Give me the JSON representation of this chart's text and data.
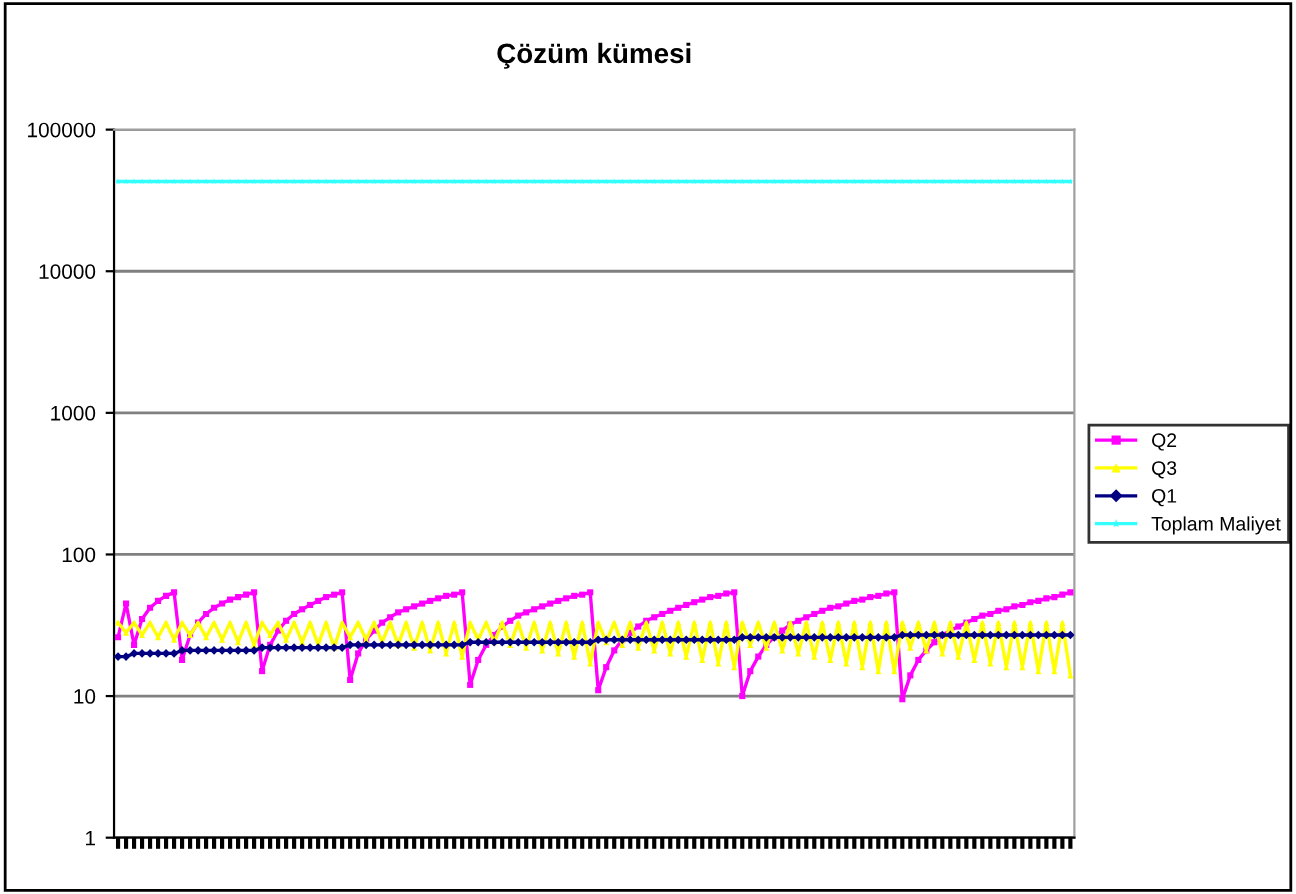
{
  "chart_data": {
    "type": "line",
    "title": "Çözüm kümesi",
    "categories": [
      null,
      null,
      null,
      null,
      null,
      null,
      null,
      null,
      null,
      null,
      null,
      null,
      null,
      null,
      null,
      null,
      null,
      null,
      null,
      null,
      null,
      null,
      null,
      null,
      null,
      null,
      null,
      null,
      null,
      null,
      null,
      null,
      null,
      null,
      null,
      null,
      null,
      null,
      null,
      null,
      null,
      null,
      null,
      null,
      null,
      null,
      null,
      null,
      null,
      null,
      null,
      null,
      null,
      null,
      null,
      null,
      null,
      null,
      null,
      null,
      null,
      null,
      null,
      null,
      null,
      null,
      null,
      null,
      null,
      null,
      null,
      null,
      null,
      null,
      null,
      null,
      null,
      null,
      null,
      null,
      null,
      null,
      null,
      null,
      null,
      null,
      null,
      null,
      null,
      null,
      null,
      null,
      null,
      null,
      null,
      null,
      null,
      null,
      null,
      null,
      null,
      null,
      null,
      null,
      null,
      null,
      null,
      null,
      null,
      null,
      null,
      null,
      null,
      null,
      null,
      null,
      null,
      null,
      null,
      null
    ],
    "log": "y",
    "ylim": [
      1,
      100000
    ],
    "yticks": [
      1,
      10,
      100,
      1000,
      10000,
      100000
    ],
    "grid": "y",
    "legend": "right",
    "series": [
      {
        "name": "Q2",
        "color": "#ff00ff",
        "marker": "square",
        "values": [
          26,
          45,
          23,
          35,
          42,
          47,
          51,
          54,
          18,
          27,
          33,
          38,
          42,
          45,
          48,
          50,
          52,
          54,
          15,
          23,
          29,
          34,
          38,
          41,
          44,
          47,
          50,
          52,
          54,
          13,
          20,
          25,
          29,
          33,
          36,
          39,
          41,
          43,
          45,
          47,
          49,
          51,
          52,
          54,
          12,
          18,
          23,
          27,
          31,
          34,
          37,
          39,
          41,
          43,
          45,
          47,
          49,
          51,
          52,
          54,
          11,
          16,
          21,
          25,
          28,
          31,
          34,
          36,
          38,
          40,
          42,
          44,
          46,
          48,
          50,
          51,
          53,
          54,
          10,
          15,
          19,
          23,
          26,
          29,
          32,
          34,
          36,
          38,
          40,
          42,
          43,
          45,
          47,
          48,
          50,
          51,
          53,
          54,
          9.5,
          14,
          18,
          21,
          24,
          27,
          29,
          31,
          33,
          35,
          37,
          38,
          40,
          41,
          43,
          44,
          46,
          47,
          49,
          50,
          52,
          54
        ]
      },
      {
        "name": "Q3",
        "color": "#ffff00",
        "marker": "triangle",
        "values": [
          33,
          28,
          33,
          27,
          33,
          26,
          33,
          25,
          33,
          27,
          33,
          26,
          33,
          25,
          33,
          24,
          33,
          23,
          33,
          27,
          33,
          25,
          33,
          24,
          33,
          23,
          33,
          22,
          33,
          26,
          33,
          25,
          33,
          24,
          33,
          23,
          33,
          22,
          33,
          21,
          33,
          20,
          33,
          19,
          33,
          25,
          33,
          24,
          33,
          23,
          33,
          22,
          33,
          21,
          33,
          20,
          33,
          19,
          33,
          17,
          33,
          24,
          33,
          23,
          33,
          22,
          33,
          21,
          33,
          20,
          33,
          19,
          33,
          18,
          33,
          17,
          33,
          16,
          33,
          23,
          33,
          22,
          33,
          21,
          33,
          20,
          33,
          19,
          33,
          18,
          33,
          17,
          33,
          16,
          33,
          15,
          33,
          15,
          33,
          22,
          33,
          21,
          33,
          20,
          33,
          19,
          33,
          18,
          33,
          17,
          33,
          16,
          33,
          16,
          33,
          15,
          33,
          15,
          33,
          14
        ]
      },
      {
        "name": "Q1",
        "color": "#000080",
        "marker": "diamond",
        "values": [
          19,
          19,
          20,
          20,
          20,
          20,
          20,
          20,
          21,
          21,
          21,
          21,
          21,
          21,
          21,
          21,
          21,
          21,
          22,
          22,
          22,
          22,
          22,
          22,
          22,
          22,
          22,
          22,
          22,
          23,
          23,
          23,
          23,
          23,
          23,
          23,
          23,
          23,
          23,
          23,
          23,
          23,
          23,
          23,
          24,
          24,
          24,
          24,
          24,
          24,
          24,
          24,
          24,
          24,
          24,
          24,
          24,
          24,
          24,
          24,
          25,
          25,
          25,
          25,
          25,
          25,
          25,
          25,
          25,
          25,
          25,
          25,
          25,
          25,
          25,
          25,
          25,
          25,
          26,
          26,
          26,
          26,
          26,
          26,
          26,
          26,
          26,
          26,
          26,
          26,
          26,
          26,
          26,
          26,
          26,
          26,
          26,
          26,
          27,
          27,
          27,
          27,
          27,
          27,
          27,
          27,
          27,
          27,
          27,
          27,
          27,
          27,
          27,
          27,
          27,
          27,
          27,
          27,
          27,
          27
        ]
      },
      {
        "name": "Toplam Maliyet",
        "color": "#33ffff",
        "marker": "star",
        "values": [
          43000,
          43000,
          43000,
          43000,
          43000,
          43000,
          43000,
          43000,
          43000,
          43000,
          43000,
          43000,
          43000,
          43000,
          43000,
          43000,
          43000,
          43000,
          43000,
          43000,
          43000,
          43000,
          43000,
          43000,
          43000,
          43000,
          43000,
          43000,
          43000,
          43000,
          43000,
          43000,
          43000,
          43000,
          43000,
          43000,
          43000,
          43000,
          43000,
          43000,
          43000,
          43000,
          43000,
          43000,
          43000,
          43000,
          43000,
          43000,
          43000,
          43000,
          43000,
          43000,
          43000,
          43000,
          43000,
          43000,
          43000,
          43000,
          43000,
          43000,
          43000,
          43000,
          43000,
          43000,
          43000,
          43000,
          43000,
          43000,
          43000,
          43000,
          43000,
          43000,
          43000,
          43000,
          43000,
          43000,
          43000,
          43000,
          43000,
          43000,
          43000,
          43000,
          43000,
          43000,
          43000,
          43000,
          43000,
          43000,
          43000,
          43000,
          43000,
          43000,
          43000,
          43000,
          43000,
          43000,
          43000,
          43000,
          43000,
          43000,
          43000,
          43000,
          43000,
          43000,
          43000,
          43000,
          43000,
          43000,
          43000,
          43000,
          43000,
          43000,
          43000,
          43000,
          43000,
          43000,
          43000,
          43000,
          43000,
          43000
        ]
      }
    ]
  }
}
